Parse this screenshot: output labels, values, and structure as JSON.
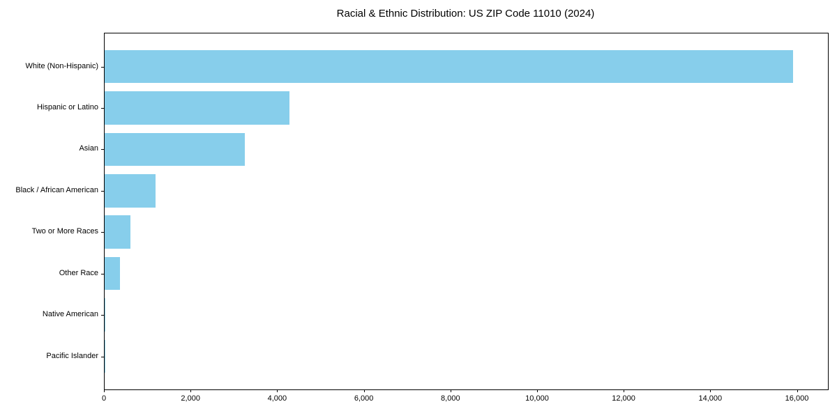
{
  "chart_data": {
    "type": "bar",
    "orientation": "horizontal",
    "title": "Racial & Ethnic Distribution: US ZIP Code 11010 (2024)",
    "categories": [
      "White (Non-Hispanic)",
      "Hispanic or Latino",
      "Asian",
      "Black / African American",
      "Two or More Races",
      "Other Race",
      "Native American",
      "Pacific Islander"
    ],
    "values": [
      15890,
      4270,
      3240,
      1180,
      600,
      350,
      10,
      5
    ],
    "xlabel": "",
    "ylabel": "",
    "xlim": [
      0,
      16700
    ],
    "x_ticks": [
      0,
      2000,
      4000,
      6000,
      8000,
      10000,
      12000,
      14000,
      16000
    ],
    "x_tick_labels": [
      "0",
      "2,000",
      "4,000",
      "6,000",
      "8,000",
      "10,000",
      "12,000",
      "14,000",
      "16,000"
    ],
    "bar_color": "#87CEEB",
    "text_color": "#000000",
    "axis_color": "#000000",
    "background_color": "#ffffff",
    "grid": false,
    "legend_position": "none"
  }
}
